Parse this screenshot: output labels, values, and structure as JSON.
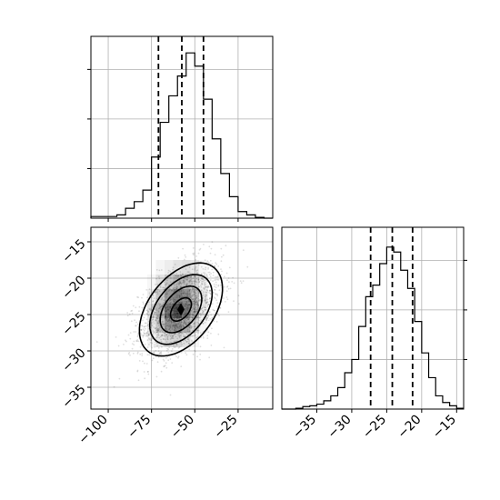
{
  "chart_data": {
    "type": "corner",
    "colors": {
      "line": "#000000",
      "grid": "#b0b0b0",
      "density": "#000000"
    },
    "grid": true,
    "panels": [
      {
        "id": "hist_x",
        "type": "bar",
        "bins_x": [
          -110,
          -105,
          -100,
          -95,
          -90,
          -85,
          -80,
          -75,
          -70,
          -65,
          -60,
          -55,
          -50,
          -45,
          -40,
          -35,
          -30,
          -25,
          -20,
          -15,
          -10,
          -5
        ],
        "counts": [
          0.01,
          0.01,
          0.01,
          0.02,
          0.06,
          0.1,
          0.17,
          0.37,
          0.58,
          0.74,
          0.86,
          1.0,
          0.92,
          0.72,
          0.48,
          0.27,
          0.13,
          0.04,
          0.02,
          0.005,
          0.0
        ],
        "quantiles": [
          -71,
          -57.5,
          -45
        ],
        "xlim": [
          -110,
          -5
        ],
        "ylim": [
          0,
          1.1
        ],
        "yticks": [
          0.3,
          0.6,
          0.9
        ]
      },
      {
        "id": "hist_y",
        "type": "bar",
        "bins_x": [
          -40,
          -39,
          -38,
          -37,
          -36,
          -35,
          -34,
          -33,
          -32,
          -31,
          -30,
          -29,
          -28,
          -27,
          -26,
          -25,
          -24,
          -23,
          -22,
          -21,
          -20,
          -19,
          -18,
          -17,
          -16,
          -15,
          -14
        ],
        "counts": [
          0.0,
          0.0,
          0.005,
          0.015,
          0.02,
          0.03,
          0.05,
          0.08,
          0.13,
          0.22,
          0.3,
          0.5,
          0.68,
          0.75,
          0.88,
          0.98,
          0.95,
          0.84,
          0.73,
          0.53,
          0.34,
          0.19,
          0.08,
          0.04,
          0.02,
          0.005
        ],
        "quantiles": [
          -27.3,
          -24.2,
          -21.3
        ],
        "xlim": [
          -40,
          -14
        ],
        "ylim": [
          0,
          1.1
        ],
        "yticks": [
          0.3,
          0.6,
          0.9
        ],
        "xticks": [
          -35,
          -30,
          -25,
          -20,
          -15
        ],
        "xtick_labels": [
          "−35",
          "−30",
          "−25",
          "−20",
          "−15"
        ]
      },
      {
        "id": "joint",
        "type": "scatter",
        "xlim": [
          -110,
          -5
        ],
        "ylim": [
          -38,
          -13
        ],
        "xticks": [
          -100,
          -75,
          -50,
          -25
        ],
        "xtick_labels": [
          "−100",
          "−75",
          "−50",
          "−25"
        ],
        "yticks": [
          -35,
          -30,
          -25,
          -20,
          -15
        ],
        "ytick_labels": [
          "−35",
          "−30",
          "−25",
          "−20",
          "−15"
        ],
        "center": [
          -58,
          -24.3
        ],
        "sd": [
          12,
          3.2
        ],
        "correlation": 0.45,
        "contour_levels_sigma": [
          0.5,
          1.0,
          1.5,
          2.0
        ],
        "density_grid": {
          "x": [
            -75,
            -70,
            -65,
            -60,
            -55,
            -50,
            -45
          ],
          "y": [
            -18.5,
            -20.5,
            -22.5,
            -24.5,
            -26.5,
            -28.5
          ],
          "values": [
            [
              0.0,
              0.05,
              0.1,
              0.15,
              0.18,
              0.12,
              0.04
            ],
            [
              0.04,
              0.15,
              0.3,
              0.4,
              0.35,
              0.22,
              0.08
            ],
            [
              0.1,
              0.3,
              0.55,
              0.68,
              0.6,
              0.35,
              0.12
            ],
            [
              0.15,
              0.4,
              0.75,
              0.95,
              0.7,
              0.4,
              0.1
            ],
            [
              0.12,
              0.32,
              0.55,
              0.6,
              0.45,
              0.22,
              0.05
            ],
            [
              0.05,
              0.15,
              0.22,
              0.24,
              0.16,
              0.06,
              0.0
            ]
          ]
        },
        "peak": [
          -58,
          -24.3
        ]
      }
    ]
  }
}
